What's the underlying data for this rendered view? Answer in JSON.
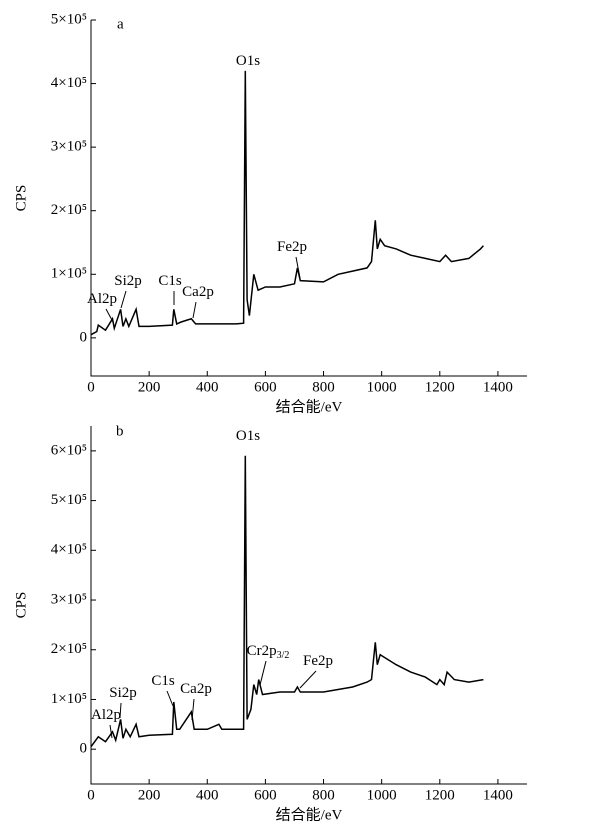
{
  "chart_data": [
    {
      "type": "line",
      "panel_label": "a",
      "color": "#000000",
      "y_label": "CPS",
      "x_label": "结合能/eV",
      "xlim": [
        0,
        1500
      ],
      "xticks": [
        0,
        200,
        400,
        600,
        800,
        1000,
        1200,
        1400
      ],
      "ylim": [
        -60000,
        500000
      ],
      "yticks": [
        0,
        {
          "value": 100000,
          "label": "1×10⁵"
        },
        {
          "value": 200000,
          "label": "2×10⁵"
        },
        {
          "value": 300000,
          "label": "3×10⁵"
        },
        {
          "value": 400000,
          "label": "4×10⁵"
        },
        {
          "value": 500000,
          "label": "5×10⁵"
        }
      ],
      "x": [
        0,
        20,
        25,
        50,
        74,
        80,
        102,
        110,
        120,
        130,
        155,
        165,
        200,
        280,
        285,
        295,
        310,
        345,
        360,
        400,
        500,
        525,
        531,
        537,
        545,
        560,
        575,
        600,
        650,
        700,
        710,
        720,
        800,
        850,
        900,
        950,
        965,
        978,
        985,
        995,
        1010,
        1050,
        1100,
        1150,
        1200,
        1220,
        1240,
        1300,
        1340,
        1350
      ],
      "values": [
        5000,
        10000,
        20000,
        12000,
        30000,
        15000,
        45000,
        18000,
        30000,
        18000,
        45000,
        18000,
        18000,
        20000,
        45000,
        22000,
        25000,
        30000,
        22000,
        22000,
        22000,
        23000,
        420000,
        60000,
        35000,
        100000,
        75000,
        80000,
        80000,
        85000,
        110000,
        90000,
        88000,
        100000,
        105000,
        110000,
        120000,
        185000,
        140000,
        155000,
        145000,
        140000,
        130000,
        125000,
        120000,
        130000,
        120000,
        125000,
        140000,
        145000
      ],
      "annotations": [
        {
          "text": "O1s"
        },
        {
          "text": "Fe2p"
        },
        {
          "text": "Si2p"
        },
        {
          "text": "Al2p"
        },
        {
          "text": "C1s"
        },
        {
          "text": "Ca2p"
        }
      ]
    },
    {
      "type": "line",
      "panel_label": "b",
      "color": "#000000",
      "y_label": "CPS",
      "x_label": "结合能/eV",
      "xlim": [
        0,
        1500
      ],
      "xticks": [
        0,
        200,
        400,
        600,
        800,
        1000,
        1200,
        1400
      ],
      "ylim": [
        -70000,
        650000
      ],
      "yticks": [
        0,
        {
          "value": 100000,
          "label": "1×10⁵"
        },
        {
          "value": 200000,
          "label": "2×10⁵"
        },
        {
          "value": 300000,
          "label": "3×10⁵"
        },
        {
          "value": 400000,
          "label": "4×10⁵"
        },
        {
          "value": 500000,
          "label": "5×10⁵"
        },
        {
          "value": 600000,
          "label": "6×10⁵"
        }
      ],
      "x": [
        0,
        25,
        50,
        74,
        85,
        102,
        110,
        120,
        135,
        155,
        165,
        200,
        280,
        285,
        295,
        305,
        345,
        355,
        400,
        440,
        450,
        525,
        531,
        537,
        550,
        560,
        570,
        577,
        590,
        650,
        700,
        710,
        720,
        800,
        900,
        950,
        965,
        978,
        985,
        995,
        1050,
        1100,
        1150,
        1190,
        1200,
        1215,
        1225,
        1250,
        1300,
        1350
      ],
      "values": [
        5000,
        25000,
        15000,
        35000,
        18000,
        60000,
        22000,
        40000,
        25000,
        50000,
        25000,
        28000,
        30000,
        95000,
        40000,
        40000,
        75000,
        40000,
        40000,
        50000,
        40000,
        40000,
        590000,
        60000,
        80000,
        130000,
        110000,
        140000,
        110000,
        115000,
        115000,
        125000,
        115000,
        115000,
        125000,
        135000,
        140000,
        215000,
        170000,
        190000,
        170000,
        155000,
        145000,
        130000,
        140000,
        130000,
        155000,
        140000,
        135000,
        140000
      ],
      "annotations": [
        {
          "text": "O1s"
        },
        {
          "text": "Cr2p",
          "subscript": "3/2"
        },
        {
          "text": "Fe2p"
        },
        {
          "text": "Si2p"
        },
        {
          "text": "Al2p"
        },
        {
          "text": "C1s"
        },
        {
          "text": "Ca2p"
        }
      ]
    }
  ]
}
